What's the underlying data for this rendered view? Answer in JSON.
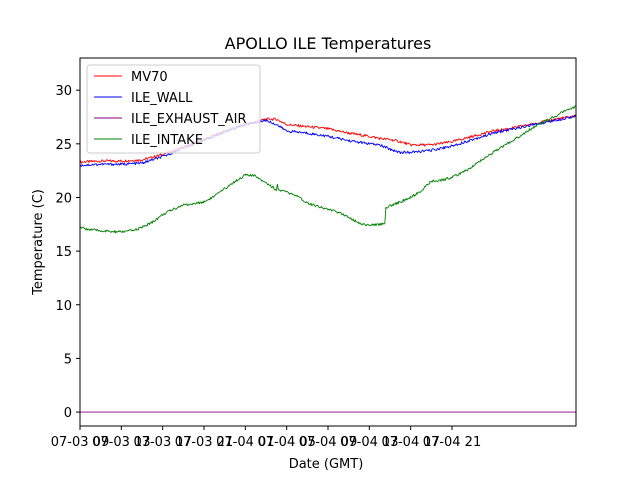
{
  "chart_data": {
    "type": "line",
    "title": "APOLLO ILE Temperatures",
    "xlabel": "Date (GMT)",
    "ylabel": "Temperature (C)",
    "xlim_hours": [
      0,
      48
    ],
    "ylim": [
      -1.3,
      33
    ],
    "grid": false,
    "legend_position": "top-left",
    "x_ticks": [
      {
        "hours": 0,
        "label": "07-03 09"
      },
      {
        "hours": 4,
        "label": "07-03 13"
      },
      {
        "hours": 8,
        "label": "07-03 17"
      },
      {
        "hours": 12,
        "label": "07-03 21"
      },
      {
        "hours": 16,
        "label": "07-04 01"
      },
      {
        "hours": 20,
        "label": "07-04 05"
      },
      {
        "hours": 24,
        "label": "07-04 09"
      },
      {
        "hours": 28,
        "label": "07-04 13"
      },
      {
        "hours": 32,
        "label": "07-04 17"
      },
      {
        "hours": 36,
        "label": "07-04 21"
      }
    ],
    "y_ticks": [
      0,
      5,
      10,
      15,
      20,
      25,
      30
    ],
    "series": [
      {
        "name": "MV70",
        "color": "#ff0000",
        "x": [
          0,
          2,
          4,
          6,
          8,
          10,
          12,
          14,
          16,
          18,
          19,
          20,
          22,
          24,
          26,
          28,
          29,
          30,
          31,
          32,
          34,
          36,
          38,
          40,
          42,
          44,
          46,
          48
        ],
        "y": [
          23.3,
          23.4,
          23.4,
          23.5,
          24.0,
          24.7,
          25.4,
          26.2,
          26.8,
          27.3,
          27.3,
          26.8,
          26.6,
          26.4,
          26.0,
          25.7,
          25.5,
          25.4,
          25.2,
          24.9,
          24.9,
          25.2,
          25.7,
          26.2,
          26.5,
          26.9,
          27.3,
          27.6
        ]
      },
      {
        "name": "ILE_WALL",
        "color": "#0000ff",
        "x": [
          0,
          2,
          4,
          6,
          8,
          10,
          12,
          14,
          16,
          18,
          19,
          20,
          22,
          24,
          26,
          28,
          29,
          30,
          31,
          32,
          34,
          36,
          38,
          40,
          42,
          44,
          46,
          48
        ],
        "y": [
          23.0,
          23.1,
          23.1,
          23.2,
          23.8,
          24.6,
          25.3,
          26.1,
          26.8,
          27.2,
          26.8,
          26.2,
          26.0,
          25.7,
          25.3,
          25.0,
          24.9,
          24.5,
          24.2,
          24.2,
          24.4,
          24.8,
          25.4,
          26.0,
          26.4,
          26.8,
          27.2,
          27.6
        ]
      },
      {
        "name": "ILE_EXHAUST_AIR",
        "color": "#800080",
        "x": [
          0,
          48
        ],
        "y": [
          0,
          0
        ]
      },
      {
        "name": "ILE_INTAKE",
        "color": "#008000",
        "x": [
          0,
          1,
          2,
          3,
          4,
          5,
          6,
          7,
          8,
          9,
          10,
          11,
          12,
          13,
          14,
          15,
          16,
          17,
          18,
          19,
          19.1,
          19.2,
          20,
          21,
          22,
          23,
          24,
          25,
          26,
          27,
          28,
          29,
          29.5,
          29.6,
          30,
          31,
          32,
          33,
          34,
          35,
          36,
          37,
          38,
          39,
          40,
          41,
          42,
          43,
          44,
          45,
          46,
          47,
          48
        ],
        "y": [
          17.2,
          17.0,
          16.9,
          16.8,
          16.8,
          16.9,
          17.2,
          17.7,
          18.4,
          18.9,
          19.3,
          19.4,
          19.6,
          20.1,
          20.8,
          21.5,
          22.1,
          22.0,
          21.4,
          20.7,
          21.2,
          20.7,
          20.5,
          20.1,
          19.5,
          19.2,
          18.9,
          18.6,
          18.2,
          17.6,
          17.4,
          17.5,
          17.6,
          19.1,
          19.2,
          19.6,
          20.0,
          20.6,
          21.5,
          21.6,
          21.9,
          22.3,
          22.9,
          23.6,
          24.2,
          24.8,
          25.4,
          26.0,
          26.6,
          27.1,
          27.6,
          28.1,
          28.5
        ]
      }
    ]
  }
}
